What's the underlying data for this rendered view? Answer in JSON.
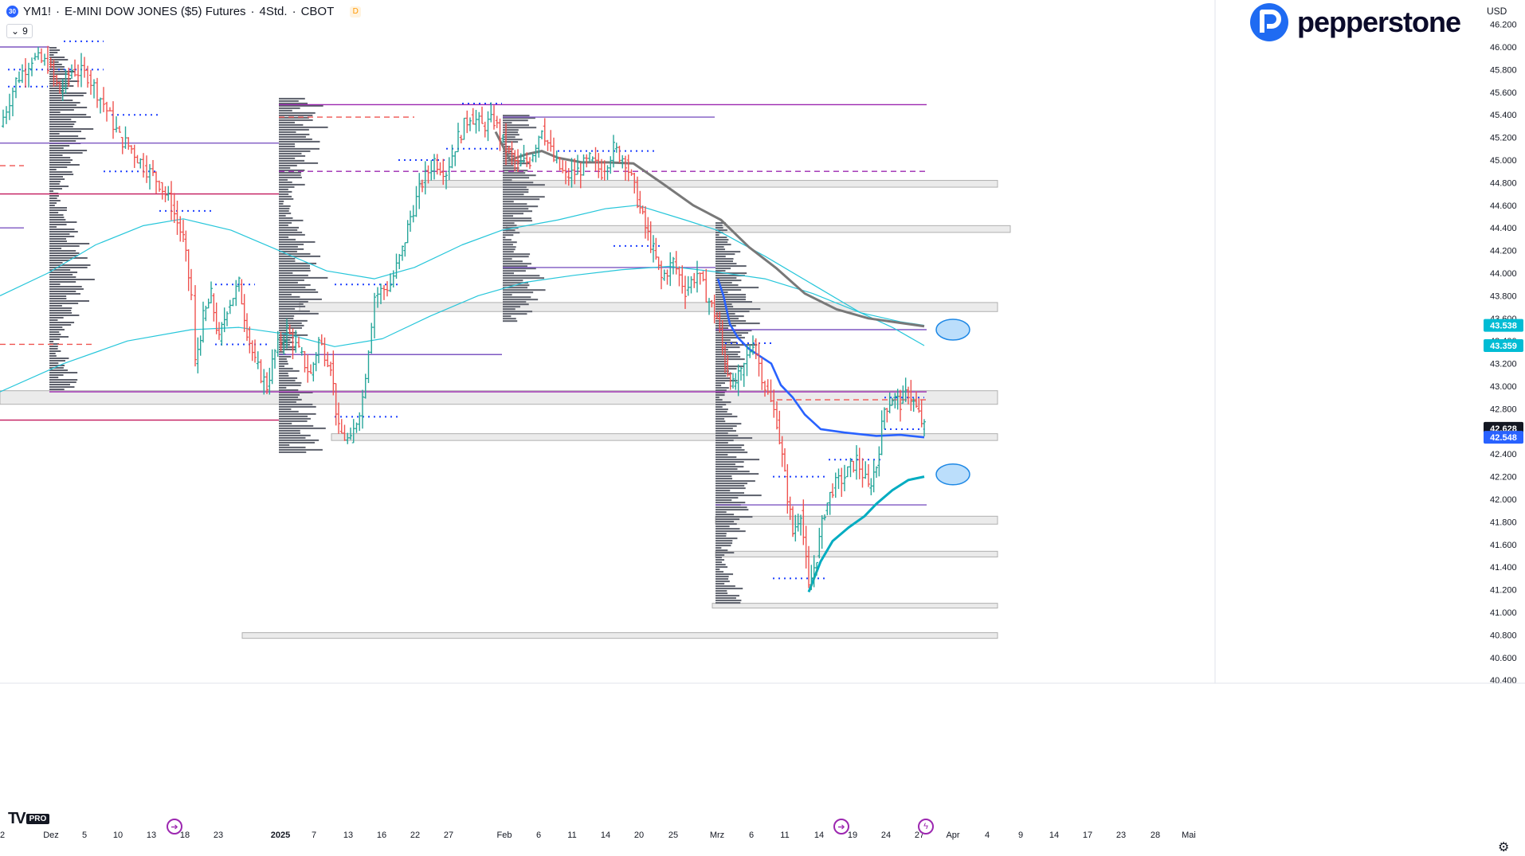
{
  "header": {
    "badge": "30",
    "symbol": "YM1!",
    "sep1": "·",
    "name": "E-MINI DOW JONES ($5) Futures",
    "sep2": "·",
    "interval": "4Std.",
    "sep3": "·",
    "exchange": "CBOT",
    "data_badge": "D",
    "indicator_count": "9"
  },
  "brand": {
    "name": "pepperstone",
    "color": "#1f6bf2"
  },
  "currency": "USD",
  "footer": {
    "tv": "TV",
    "pro": "PRO"
  },
  "colors": {
    "bull": "#26a69a",
    "bear": "#ef5350",
    "purple": "#7e57c2",
    "magenta": "#c2185b",
    "cyan": "#26c6da",
    "vwap_blue": "#2962ff",
    "ma_grey": "#787878",
    "profile": "#5d606b"
  },
  "chart_data": {
    "type": "candlestick",
    "title": "YM1! · E-MINI DOW JONES ($5) Futures · 4Std. · CBOT",
    "ylim": [
      40300,
      46300
    ],
    "y_ticks": [
      "40.400",
      "40.600",
      "40.800",
      "41.000",
      "41.200",
      "41.400",
      "41.600",
      "41.800",
      "42.000",
      "42.200",
      "42.400",
      "42.600",
      "42.800",
      "43.000",
      "43.200",
      "43.400",
      "43.600",
      "43.800",
      "44.000",
      "44.200",
      "44.400",
      "44.600",
      "44.800",
      "45.000",
      "45.200",
      "45.400",
      "45.600",
      "45.800",
      "46.000",
      "46.200"
    ],
    "x_labels": [
      "2",
      "Dez",
      "5",
      "10",
      "13",
      "18",
      "23",
      "2025",
      "7",
      "13",
      "16",
      "22",
      "27",
      "Feb",
      "6",
      "11",
      "14",
      "20",
      "25",
      "Mrz",
      "6",
      "11",
      "14",
      "19",
      "24",
      "27",
      "Apr",
      "4",
      "9",
      "14",
      "17",
      "23",
      "28",
      "Mai"
    ],
    "price_labels": [
      {
        "label": "43.538",
        "value": 43538,
        "color": "#00bcd4"
      },
      {
        "label": "43.359",
        "value": 43359,
        "color": "#00bcd4"
      },
      {
        "label": "42.628",
        "value": 42628,
        "color": "#131722"
      },
      {
        "label": "42.548",
        "value": 42548,
        "color": "#2962ff"
      }
    ],
    "close_path": [
      [
        0,
        45300
      ],
      [
        20,
        45700
      ],
      [
        40,
        45900
      ],
      [
        60,
        45850
      ],
      [
        75,
        45600
      ],
      [
        90,
        45800
      ],
      [
        110,
        45750
      ],
      [
        130,
        45500
      ],
      [
        150,
        45200
      ],
      [
        165,
        45100
      ],
      [
        180,
        44950
      ],
      [
        200,
        44800
      ],
      [
        215,
        44600
      ],
      [
        230,
        44300
      ],
      [
        240,
        43800
      ],
      [
        245,
        43200
      ],
      [
        255,
        43600
      ],
      [
        265,
        43800
      ],
      [
        275,
        43400
      ],
      [
        285,
        43700
      ],
      [
        300,
        43900
      ],
      [
        310,
        43500
      ],
      [
        320,
        43200
      ],
      [
        335,
        43000
      ],
      [
        345,
        43300
      ],
      [
        360,
        43500
      ],
      [
        375,
        43300
      ],
      [
        390,
        43100
      ],
      [
        400,
        43400
      ],
      [
        415,
        43200
      ],
      [
        425,
        42600
      ],
      [
        440,
        42500
      ],
      [
        455,
        42900
      ],
      [
        470,
        43800
      ],
      [
        490,
        43900
      ],
      [
        505,
        44200
      ],
      [
        515,
        44500
      ],
      [
        530,
        44800
      ],
      [
        545,
        45000
      ],
      [
        560,
        44900
      ],
      [
        575,
        45200
      ],
      [
        590,
        45400
      ],
      [
        605,
        45300
      ],
      [
        620,
        45350
      ],
      [
        635,
        45100
      ],
      [
        650,
        44950
      ],
      [
        665,
        45000
      ],
      [
        680,
        45300
      ],
      [
        695,
        45000
      ],
      [
        710,
        44850
      ],
      [
        725,
        44900
      ],
      [
        740,
        45000
      ],
      [
        755,
        44900
      ],
      [
        770,
        45100
      ],
      [
        785,
        45000
      ],
      [
        800,
        44650
      ],
      [
        810,
        44400
      ],
      [
        820,
        44200
      ],
      [
        830,
        43950
      ],
      [
        845,
        44100
      ],
      [
        860,
        43850
      ],
      [
        875,
        44000
      ],
      [
        890,
        43750
      ],
      [
        900,
        43600
      ],
      [
        910,
        43200
      ],
      [
        920,
        43000
      ],
      [
        930,
        43100
      ],
      [
        945,
        43400
      ],
      [
        960,
        43000
      ],
      [
        975,
        42700
      ],
      [
        985,
        42200
      ],
      [
        995,
        41700
      ],
      [
        1005,
        41900
      ],
      [
        1015,
        41200
      ],
      [
        1025,
        41500
      ],
      [
        1035,
        41900
      ],
      [
        1045,
        42100
      ],
      [
        1060,
        42200
      ],
      [
        1075,
        42350
      ],
      [
        1090,
        42100
      ],
      [
        1100,
        42300
      ],
      [
        1110,
        42800
      ],
      [
        1120,
        42900
      ],
      [
        1130,
        42850
      ],
      [
        1140,
        42950
      ],
      [
        1150,
        42800
      ],
      [
        1160,
        42628
      ]
    ],
    "volume_profiles": [
      {
        "x": 62,
        "y_top": 46000,
        "y_bot": 42950,
        "max_w": 60
      },
      {
        "x": 350,
        "y_top": 45550,
        "y_bot": 42400,
        "max_w": 62
      },
      {
        "x": 631,
        "y_top": 45400,
        "y_bot": 43550,
        "max_w": 60
      },
      {
        "x": 898,
        "y_top": 44450,
        "y_bot": 41050,
        "max_w": 60
      }
    ],
    "zones": [
      {
        "x0": 528,
        "x1": 1252,
        "v0": 44820,
        "v1": 44760
      },
      {
        "x0": 636,
        "x1": 1268,
        "v0": 44420,
        "v1": 44360
      },
      {
        "x0": 376,
        "x1": 1252,
        "v0": 43740,
        "v1": 43660
      },
      {
        "x0": 0,
        "x1": 1252,
        "v0": 42960,
        "v1": 42840
      },
      {
        "x0": 416,
        "x1": 1252,
        "v0": 42580,
        "v1": 42520
      },
      {
        "x0": 898,
        "x1": 1252,
        "v0": 41850,
        "v1": 41780
      },
      {
        "x0": 898,
        "x1": 1252,
        "v0": 41540,
        "v1": 41490
      },
      {
        "x0": 894,
        "x1": 1252,
        "v0": 41080,
        "v1": 41040
      },
      {
        "x0": 304,
        "x1": 1252,
        "v0": 40820,
        "v1": 40770
      }
    ],
    "hlines": [
      {
        "x0": 0,
        "x1": 62,
        "v": 46000,
        "color": "#7e57c2",
        "dash": false
      },
      {
        "x0": 350,
        "x1": 1163,
        "v": 45490,
        "color": "#9c27b0",
        "dash": false
      },
      {
        "x0": 631,
        "x1": 897,
        "v": 45380,
        "color": "#7e57c2",
        "dash": false
      },
      {
        "x0": 0,
        "x1": 350,
        "v": 45150,
        "color": "#7e57c2",
        "dash": false
      },
      {
        "x0": 350,
        "x1": 1163,
        "v": 44900,
        "color": "#9c27b0",
        "dash": true
      },
      {
        "x0": 0,
        "x1": 350,
        "v": 44700,
        "color": "#c2185b",
        "dash": false
      },
      {
        "x0": 0,
        "x1": 30,
        "v": 44400,
        "color": "#7e57c2",
        "dash": false
      },
      {
        "x0": 631,
        "x1": 898,
        "v": 44050,
        "color": "#7e57c2",
        "dash": false
      },
      {
        "x0": 898,
        "x1": 1163,
        "v": 43500,
        "color": "#7e57c2",
        "dash": false
      },
      {
        "x0": 350,
        "x1": 630,
        "v": 43280,
        "color": "#7e57c2",
        "dash": false
      },
      {
        "x0": 62,
        "x1": 1163,
        "v": 42950,
        "color": "#9c27b0",
        "dash": false
      },
      {
        "x0": 0,
        "x1": 350,
        "v": 42700,
        "color": "#c2185b",
        "dash": false
      },
      {
        "x0": 898,
        "x1": 1163,
        "v": 41950,
        "color": "#7e57c2",
        "dash": false
      },
      {
        "x0": 0,
        "x1": 120,
        "v": 43370,
        "color": "#ef5350",
        "dash": true
      },
      {
        "x0": 0,
        "x1": 30,
        "v": 44950,
        "color": "#ef5350",
        "dash": true
      },
      {
        "x0": 350,
        "x1": 520,
        "v": 45380,
        "color": "#ef5350",
        "dash": true
      },
      {
        "x0": 975,
        "x1": 1163,
        "v": 42880,
        "color": "#ef5350",
        "dash": true
      }
    ],
    "ma_cyan_thin": [
      [
        0,
        43800
      ],
      [
        60,
        44000
      ],
      [
        120,
        44250
      ],
      [
        180,
        44420
      ],
      [
        230,
        44480
      ],
      [
        290,
        44380
      ],
      [
        350,
        44200
      ],
      [
        410,
        44020
      ],
      [
        470,
        43950
      ],
      [
        520,
        44050
      ],
      [
        580,
        44250
      ],
      [
        630,
        44380
      ],
      [
        700,
        44470
      ],
      [
        760,
        44570
      ],
      [
        800,
        44600
      ],
      [
        860,
        44470
      ],
      [
        900,
        44380
      ],
      [
        960,
        44150
      ],
      [
        1020,
        43900
      ],
      [
        1080,
        43650
      ],
      [
        1120,
        43520
      ],
      [
        1160,
        43359
      ]
    ],
    "ma_cyan_thin2": [
      [
        0,
        42950
      ],
      [
        80,
        43200
      ],
      [
        160,
        43400
      ],
      [
        240,
        43500
      ],
      [
        300,
        43520
      ],
      [
        360,
        43460
      ],
      [
        420,
        43350
      ],
      [
        480,
        43420
      ],
      [
        540,
        43620
      ],
      [
        600,
        43800
      ],
      [
        660,
        43920
      ],
      [
        720,
        43980
      ],
      [
        780,
        44030
      ],
      [
        840,
        44060
      ],
      [
        900,
        44010
      ],
      [
        960,
        43950
      ],
      [
        1020,
        43820
      ],
      [
        1080,
        43650
      ],
      [
        1130,
        43570
      ],
      [
        1160,
        43538
      ]
    ],
    "ma_grey": [
      [
        622,
        45250
      ],
      [
        640,
        45000
      ],
      [
        660,
        45050
      ],
      [
        680,
        45080
      ],
      [
        700,
        45020
      ],
      [
        730,
        44980
      ],
      [
        760,
        44980
      ],
      [
        795,
        44970
      ],
      [
        830,
        44800
      ],
      [
        870,
        44600
      ],
      [
        905,
        44470
      ],
      [
        940,
        44230
      ],
      [
        975,
        44040
      ],
      [
        1010,
        43820
      ],
      [
        1050,
        43680
      ],
      [
        1090,
        43600
      ],
      [
        1130,
        43560
      ],
      [
        1160,
        43530
      ]
    ],
    "vwap_blue": [
      [
        901,
        43950
      ],
      [
        908,
        43800
      ],
      [
        916,
        43550
      ],
      [
        926,
        43430
      ],
      [
        940,
        43330
      ],
      [
        955,
        43260
      ],
      [
        968,
        43200
      ],
      [
        980,
        43010
      ],
      [
        995,
        42900
      ],
      [
        1010,
        42750
      ],
      [
        1030,
        42620
      ],
      [
        1060,
        42590
      ],
      [
        1100,
        42560
      ],
      [
        1130,
        42570
      ],
      [
        1160,
        42548
      ]
    ],
    "vwap_cyan": [
      [
        1015,
        41180
      ],
      [
        1030,
        41450
      ],
      [
        1045,
        41630
      ],
      [
        1065,
        41750
      ],
      [
        1085,
        41850
      ],
      [
        1100,
        41960
      ],
      [
        1120,
        42080
      ],
      [
        1140,
        42170
      ],
      [
        1160,
        42200
      ]
    ],
    "ellipses": [
      {
        "x": 1196,
        "v": 43500
      },
      {
        "x": 1196,
        "v": 42220
      }
    ],
    "dotted_levels": [
      [
        10,
        130,
        45800
      ],
      [
        10,
        60,
        45650
      ],
      [
        80,
        130,
        46050
      ],
      [
        140,
        200,
        45400
      ],
      [
        130,
        200,
        44900
      ],
      [
        200,
        270,
        44550
      ],
      [
        270,
        320,
        43900
      ],
      [
        270,
        340,
        43370
      ],
      [
        420,
        500,
        43900
      ],
      [
        420,
        500,
        42730
      ],
      [
        500,
        560,
        45000
      ],
      [
        560,
        630,
        45100
      ],
      [
        580,
        630,
        45500
      ],
      [
        700,
        825,
        45080
      ],
      [
        770,
        830,
        44240
      ],
      [
        910,
        970,
        43380
      ],
      [
        970,
        1040,
        42200
      ],
      [
        970,
        1040,
        41300
      ],
      [
        1040,
        1110,
        42350
      ],
      [
        1110,
        1160,
        42900
      ],
      [
        1110,
        1160,
        42620
      ]
    ],
    "events": [
      {
        "x": 219,
        "symbol": "➔"
      },
      {
        "x": 1056,
        "symbol": "➔"
      },
      {
        "x": 1162,
        "symbol": "ϟ"
      }
    ]
  }
}
